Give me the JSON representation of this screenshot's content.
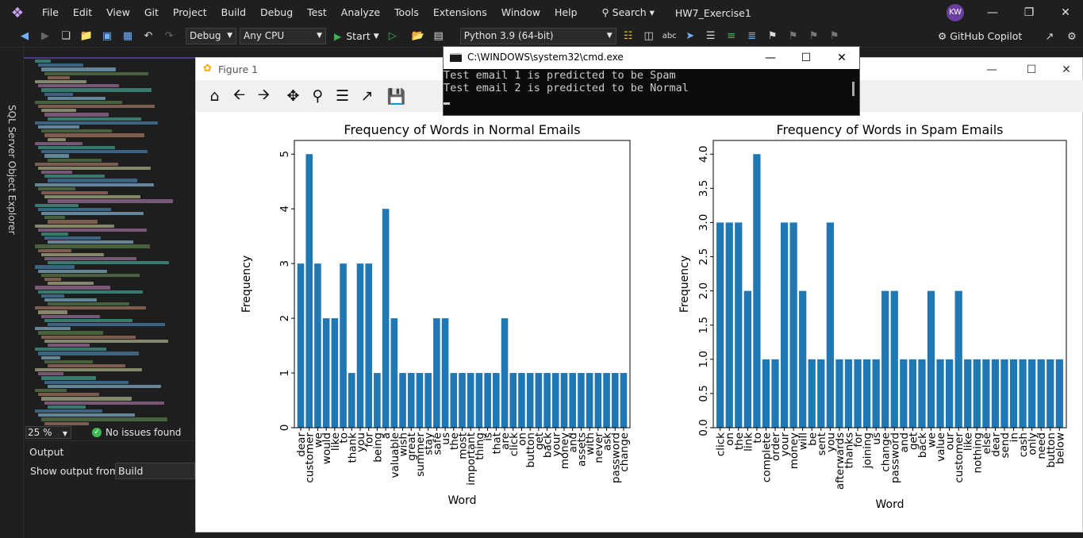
{
  "menubar": {
    "items": [
      "File",
      "Edit",
      "View",
      "Git",
      "Project",
      "Build",
      "Debug",
      "Test",
      "Analyze",
      "Tools",
      "Extensions",
      "Window",
      "Help"
    ],
    "search": "Search",
    "solution": "HW7_Exercise1",
    "avatar": "KW",
    "controls": {
      "minimize": "—",
      "restore": "❐",
      "close": "✕"
    }
  },
  "toolbar": {
    "config": "Debug",
    "platform": "Any CPU",
    "start": "Start",
    "python_env": "Python 3.9 (64-bit)",
    "copilot": "GitHub Copilot"
  },
  "left_strip": {
    "label": "SQL Server Object Explorer"
  },
  "editor": {
    "zoom": "25 %",
    "issues": "No issues found"
  },
  "output": {
    "title": "Output",
    "from_label": "Show output from:",
    "from_value": "Build"
  },
  "figure": {
    "title": "Figure 1",
    "toolbar": [
      "home-icon",
      "back-icon",
      "forward-icon",
      "pan-icon",
      "zoom-icon",
      "configure-icon",
      "edit-axis-icon",
      "save-icon"
    ]
  },
  "cmd": {
    "title": "C:\\WINDOWS\\system32\\cmd.exe",
    "lines": [
      "Test email 1 is predicted to be Spam",
      "Test email 2 is predicted to be Normal"
    ]
  },
  "chart_data": [
    {
      "type": "bar",
      "title": "Frequency of Words in Normal Emails",
      "xlabel": "Word",
      "ylabel": "Frequency",
      "ylim": [
        0,
        5.25
      ],
      "yticks": [
        "0",
        "1",
        "2",
        "3",
        "4",
        "5"
      ],
      "color": "#1f77b4",
      "categories": [
        "dear",
        "customer",
        "we",
        "would",
        "like",
        "to",
        "thank",
        "you",
        "for",
        "being",
        "a",
        "valuable",
        "wish",
        "great",
        "summer",
        "stay",
        "safe",
        "us",
        "the",
        "most",
        "important",
        "thing",
        "is",
        "that",
        "are",
        "click",
        "on",
        "button",
        "get",
        "back",
        "your",
        "money",
        "and",
        "assets",
        "with",
        "never",
        "ask",
        "password",
        "change"
      ],
      "values": [
        3,
        5,
        3,
        2,
        2,
        3,
        1,
        3,
        3,
        1,
        4,
        2,
        1,
        1,
        1,
        1,
        2,
        2,
        1,
        1,
        1,
        1,
        1,
        1,
        2,
        1,
        1,
        1,
        1,
        1,
        1,
        1,
        1,
        1,
        1,
        1,
        1,
        1,
        1
      ]
    },
    {
      "type": "bar",
      "title": "Frequency of Words in Spam Emails",
      "xlabel": "Word",
      "ylabel": "Frequency",
      "ylim": [
        0,
        4.2
      ],
      "yticks": [
        "0.0",
        "0.5",
        "1.0",
        "1.5",
        "2.0",
        "2.5",
        "3.0",
        "3.5",
        "4.0"
      ],
      "color": "#1f77b4",
      "categories": [
        "click",
        "on",
        "the",
        "link",
        "to",
        "complete",
        "order",
        "your",
        "money",
        "will",
        "be",
        "sent",
        "you",
        "afterwards",
        "thanks",
        "for",
        "joining",
        "us",
        "change",
        "password",
        "and",
        "get",
        "back",
        "we",
        "value",
        "our",
        "customer",
        "like",
        "nothing",
        "else",
        "dear",
        "send",
        "in",
        "cash",
        "only",
        "need",
        "button",
        "below"
      ],
      "values": [
        3,
        3,
        3,
        2,
        4,
        1,
        1,
        3,
        3,
        2,
        1,
        1,
        3,
        1,
        1,
        1,
        1,
        1,
        2,
        2,
        1,
        1,
        1,
        2,
        1,
        1,
        2,
        1,
        1,
        1,
        1,
        1,
        1,
        1,
        1,
        1,
        1,
        1
      ]
    }
  ]
}
